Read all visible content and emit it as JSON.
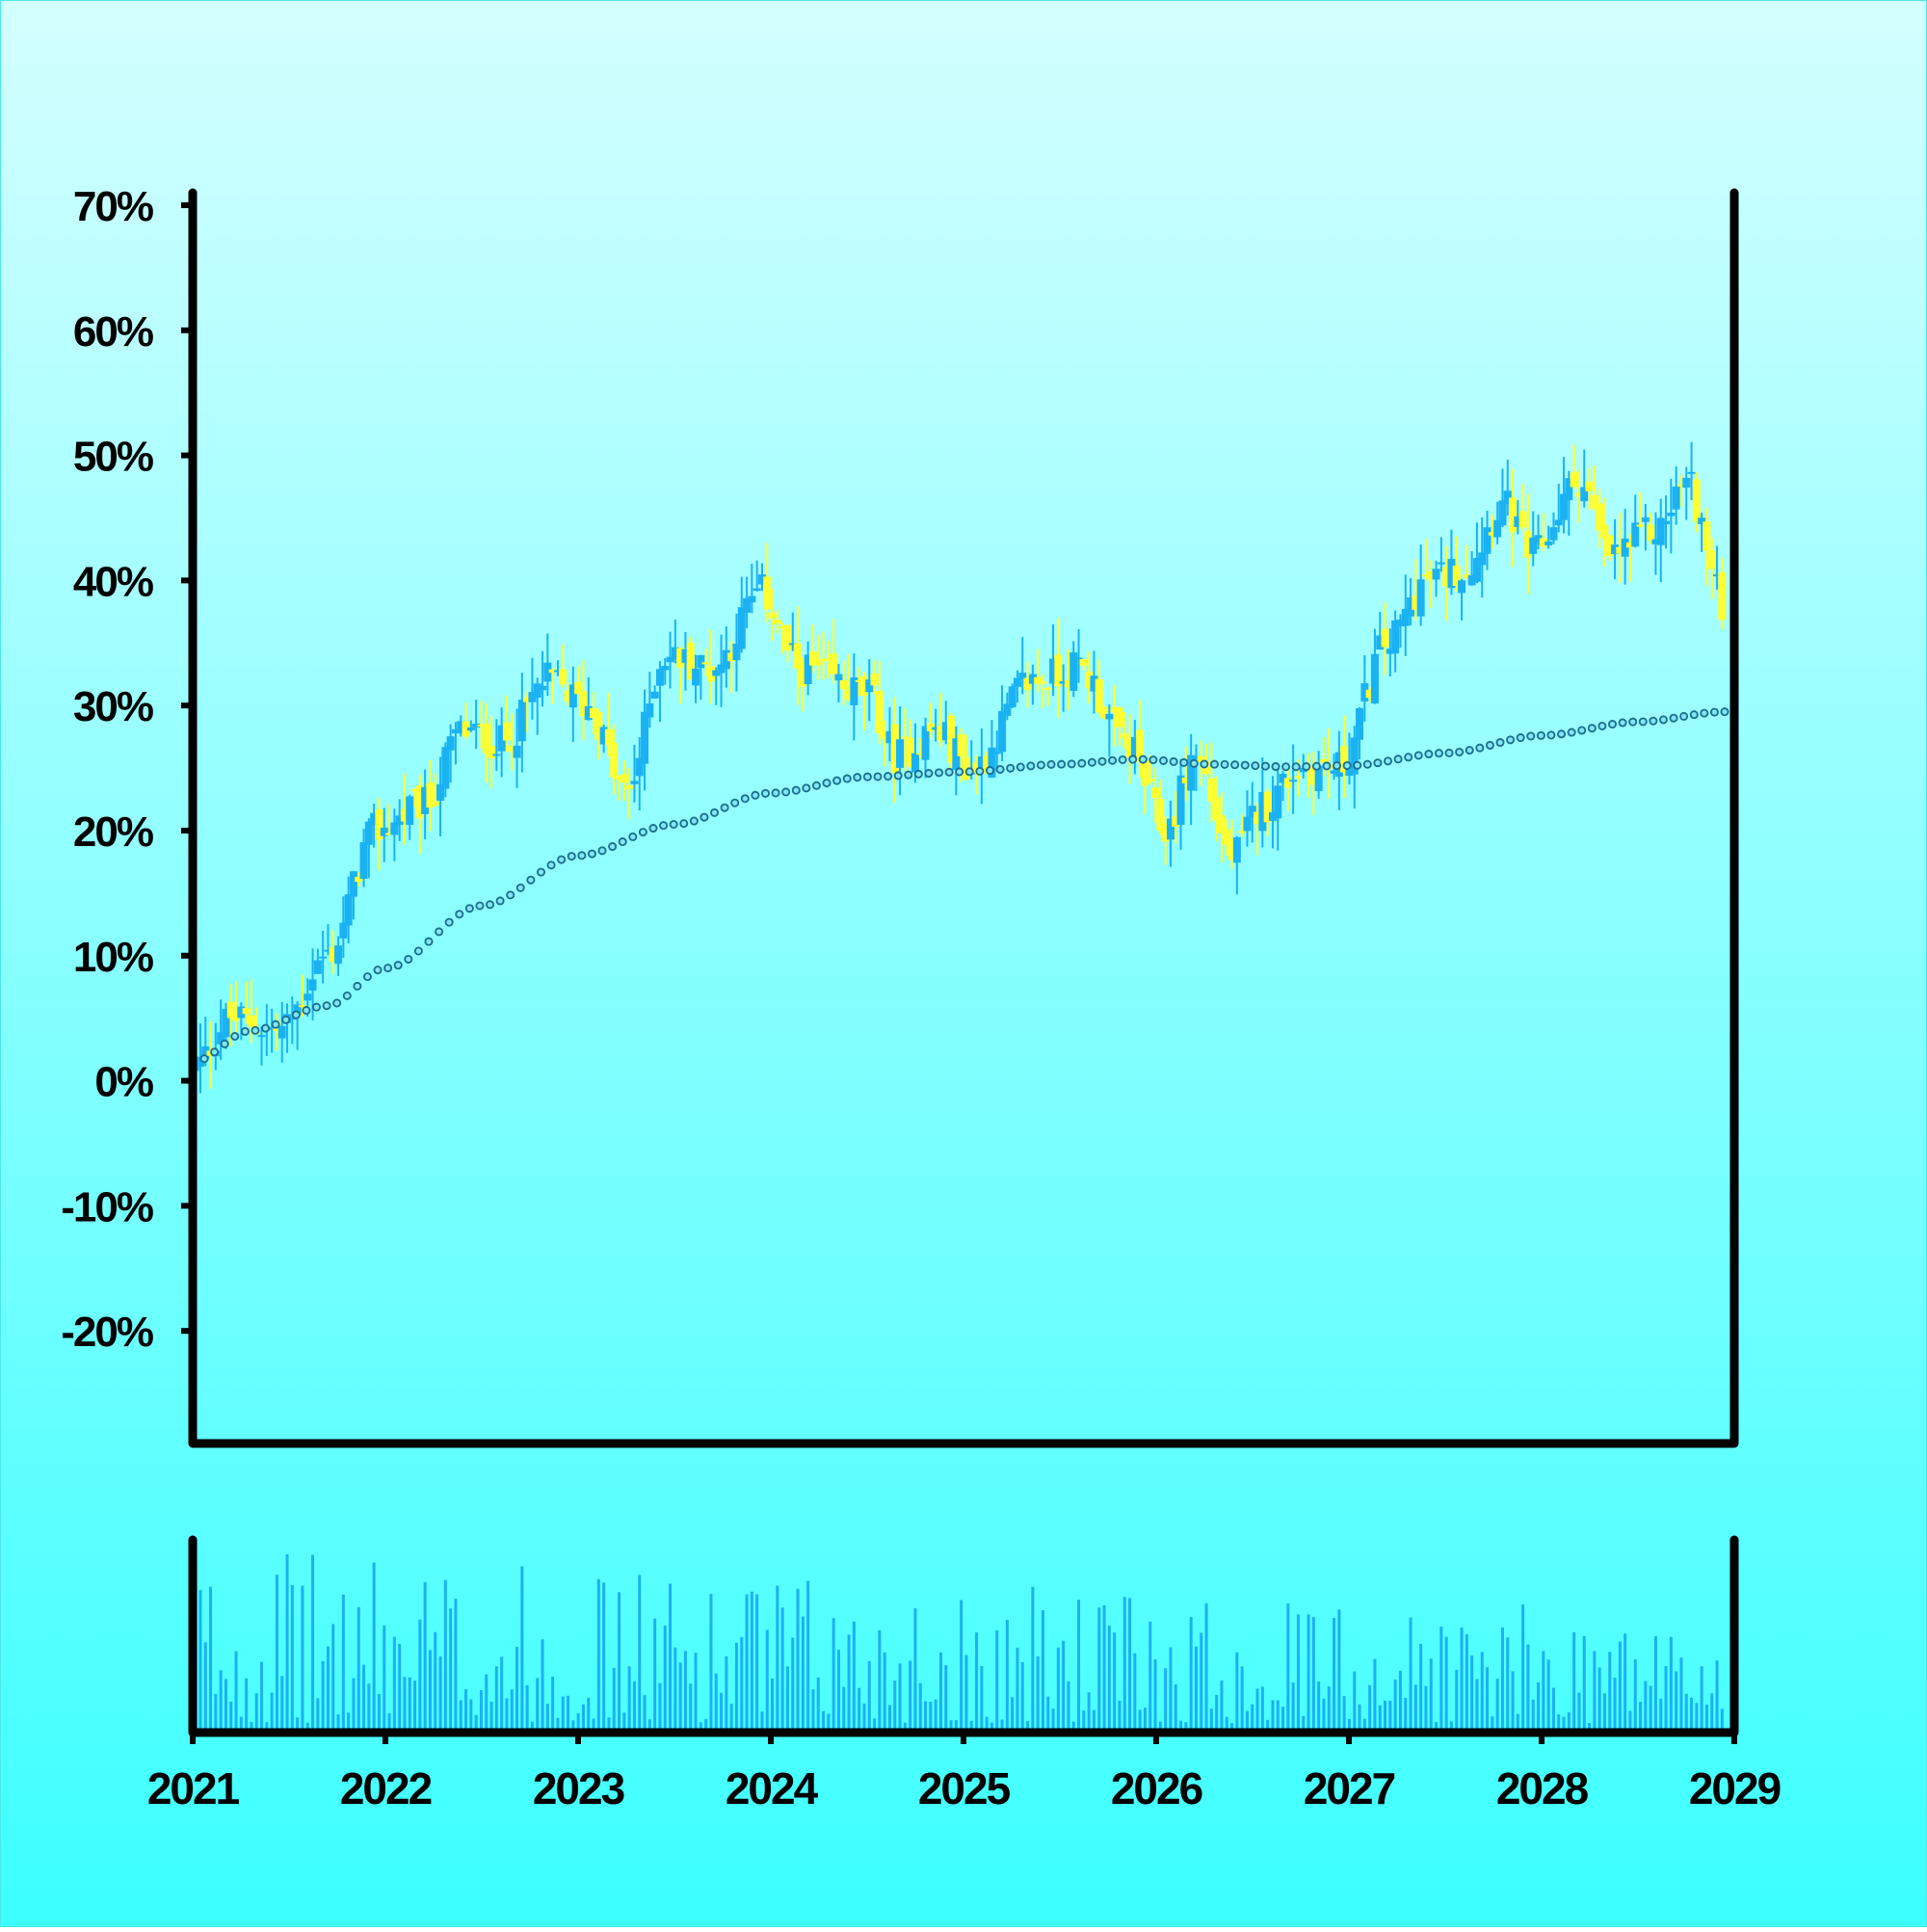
{
  "chart_data": {
    "type": "candlestick",
    "title": "",
    "xlabel": "",
    "ylabel": "",
    "y_axis": {
      "ticks": [
        -20,
        -10,
        0,
        10,
        20,
        30,
        40,
        50,
        60,
        70
      ],
      "tick_labels": [
        "-20%",
        "-10%",
        "0%",
        "10%",
        "20%",
        "30%",
        "40%",
        "50%",
        "60%",
        "70%"
      ],
      "range": [
        -29,
        71
      ],
      "unit": "%"
    },
    "x_axis": {
      "ticks": [
        2021,
        2022,
        2023,
        2024,
        2025,
        2026,
        2027,
        2028,
        2029
      ],
      "tick_labels": [
        "2021",
        "2022",
        "2023",
        "2024",
        "2025",
        "2026",
        "2027",
        "2028",
        "2029"
      ],
      "range": [
        2021,
        2029
      ]
    },
    "grid": false,
    "legend": "none",
    "colors": {
      "background_top": "#d4ffff",
      "background_bottom": "#3cffff",
      "up_candle": "#1ab2f2",
      "down_candle": "#ffff33",
      "trend_line": "#1a6d8c",
      "volume_bar": "#1ab2f2",
      "axis": "#000000"
    },
    "price_anchors": [
      {
        "x": 2021.0,
        "y": 1
      },
      {
        "x": 2021.2,
        "y": 5
      },
      {
        "x": 2021.45,
        "y": 4
      },
      {
        "x": 2021.7,
        "y": 10
      },
      {
        "x": 2021.95,
        "y": 20
      },
      {
        "x": 2022.2,
        "y": 22
      },
      {
        "x": 2022.4,
        "y": 28
      },
      {
        "x": 2022.6,
        "y": 27
      },
      {
        "x": 2022.85,
        "y": 32
      },
      {
        "x": 2023.05,
        "y": 30
      },
      {
        "x": 2023.25,
        "y": 23
      },
      {
        "x": 2023.45,
        "y": 34
      },
      {
        "x": 2023.7,
        "y": 33
      },
      {
        "x": 2023.95,
        "y": 39
      },
      {
        "x": 2024.15,
        "y": 33
      },
      {
        "x": 2024.5,
        "y": 31
      },
      {
        "x": 2024.65,
        "y": 26
      },
      {
        "x": 2024.85,
        "y": 28
      },
      {
        "x": 2025.05,
        "y": 25
      },
      {
        "x": 2025.35,
        "y": 32
      },
      {
        "x": 2025.6,
        "y": 33
      },
      {
        "x": 2025.85,
        "y": 27
      },
      {
        "x": 2026.05,
        "y": 20
      },
      {
        "x": 2026.2,
        "y": 26
      },
      {
        "x": 2026.4,
        "y": 18
      },
      {
        "x": 2026.55,
        "y": 22
      },
      {
        "x": 2026.75,
        "y": 25
      },
      {
        "x": 2026.95,
        "y": 25
      },
      {
        "x": 2027.2,
        "y": 35
      },
      {
        "x": 2027.4,
        "y": 40
      },
      {
        "x": 2027.6,
        "y": 41
      },
      {
        "x": 2027.8,
        "y": 46
      },
      {
        "x": 2027.95,
        "y": 42
      },
      {
        "x": 2028.2,
        "y": 48
      },
      {
        "x": 2028.35,
        "y": 42
      },
      {
        "x": 2028.6,
        "y": 44
      },
      {
        "x": 2028.75,
        "y": 48
      },
      {
        "x": 2028.95,
        "y": 38
      }
    ],
    "trend_anchors": [
      {
        "x": 2021.0,
        "y": 1.5
      },
      {
        "x": 2021.3,
        "y": 4
      },
      {
        "x": 2021.7,
        "y": 6
      },
      {
        "x": 2022.0,
        "y": 9
      },
      {
        "x": 2022.5,
        "y": 14
      },
      {
        "x": 2023.0,
        "y": 18
      },
      {
        "x": 2023.5,
        "y": 20.5
      },
      {
        "x": 2024.0,
        "y": 23
      },
      {
        "x": 2024.5,
        "y": 24.3
      },
      {
        "x": 2025.0,
        "y": 24.7
      },
      {
        "x": 2025.5,
        "y": 25.3
      },
      {
        "x": 2025.9,
        "y": 25.7
      },
      {
        "x": 2026.3,
        "y": 25.3
      },
      {
        "x": 2026.7,
        "y": 25.1
      },
      {
        "x": 2027.0,
        "y": 25.2
      },
      {
        "x": 2027.5,
        "y": 26.2
      },
      {
        "x": 2028.0,
        "y": 27.6
      },
      {
        "x": 2028.5,
        "y": 28.7
      },
      {
        "x": 2028.95,
        "y": 29.5
      }
    ],
    "volume_relative_range": [
      0.05,
      0.95
    ]
  }
}
